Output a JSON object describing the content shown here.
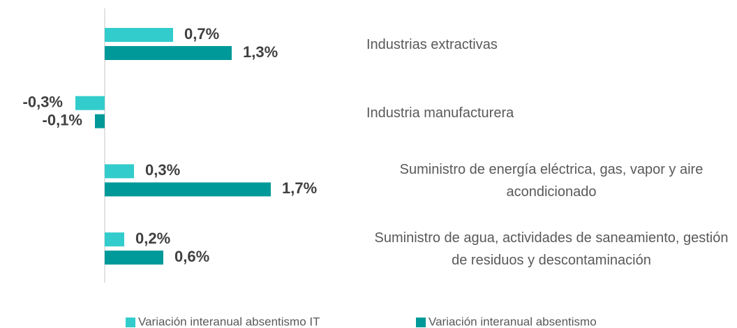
{
  "chart_data": {
    "type": "bar",
    "orientation": "horizontal",
    "categories": [
      "Industrias extractivas",
      "Industria manufacturera",
      "Suministro de energía eléctrica, gas, vapor y aire acondicionado",
      "Suministro de agua, actividades de saneamiento, gestión de residuos y descontaminación"
    ],
    "series": [
      {
        "name": "Variación interanual absentismo IT",
        "color": "#33cccc",
        "values": [
          0.7,
          -0.3,
          0.3,
          0.2
        ],
        "value_labels": [
          "0,7%",
          "-0,3%",
          "0,3%",
          "0,2%"
        ]
      },
      {
        "name": "Variación interanual absentismo",
        "color": "#009999",
        "values": [
          1.3,
          -0.1,
          1.7,
          0.6
        ],
        "value_labels": [
          "1,3%",
          "-0,1%",
          "1,7%",
          "0,6%"
        ]
      }
    ],
    "xlim": [
      -0.3,
      1.7
    ],
    "legend": "bottom"
  }
}
